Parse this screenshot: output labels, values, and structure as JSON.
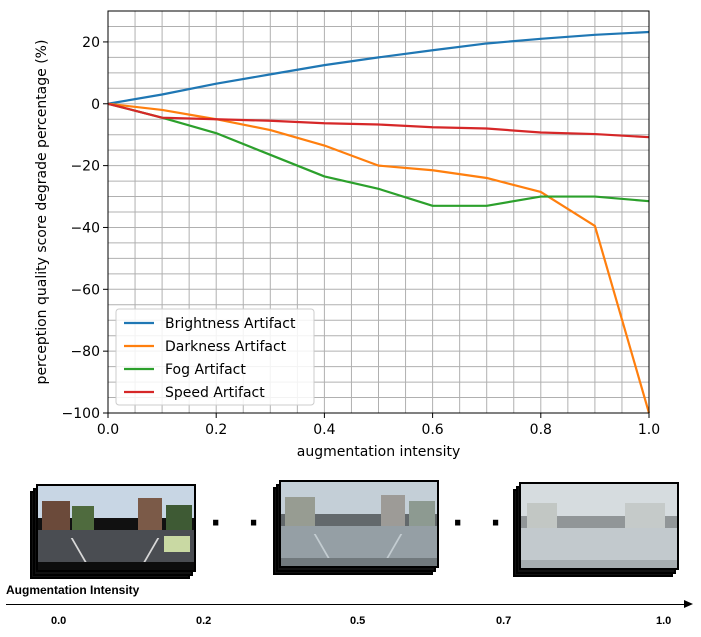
{
  "chart_data": {
    "type": "line",
    "xlabel": "augmentation intensity",
    "ylabel": "perception quality score degrade percentage (%)",
    "xlim": [
      0.0,
      1.0
    ],
    "ylim": [
      -100,
      30
    ],
    "x_ticks": [
      "0.0",
      "0.2",
      "0.4",
      "0.6",
      "0.8",
      "1.0"
    ],
    "x_tick_values": [
      0.0,
      0.2,
      0.4,
      0.6,
      0.8,
      1.0
    ],
    "y_ticks": [
      "20",
      "0",
      "−20",
      "−40",
      "−60",
      "−80",
      "−100"
    ],
    "y_tick_values": [
      20,
      0,
      -20,
      -40,
      -60,
      -80,
      -100
    ],
    "grid": true,
    "legend_position": "lower-left",
    "x": [
      0.0,
      0.1,
      0.2,
      0.3,
      0.4,
      0.5,
      0.6,
      0.7,
      0.8,
      0.9,
      1.0
    ],
    "series": [
      {
        "name": "Brightness Artifact",
        "color": "#1f77b4",
        "values": [
          0,
          3,
          6.5,
          9.5,
          12.5,
          15,
          17.3,
          19.5,
          21,
          22.3,
          23.2
        ]
      },
      {
        "name": "Darkness Artifact",
        "color": "#ff7f0e",
        "values": [
          0,
          -2,
          -5,
          -8.5,
          -13.5,
          -20,
          -21.5,
          -24,
          -28.5,
          -39.5,
          -100
        ]
      },
      {
        "name": "Fog Artifact",
        "color": "#2ca02c",
        "values": [
          0,
          -4.5,
          -9.5,
          -16.5,
          -23.5,
          -27.5,
          -33,
          -33,
          -30,
          -30,
          -31.5
        ]
      },
      {
        "name": "Speed Artifact",
        "color": "#d62728",
        "values": [
          0,
          -4.5,
          -5,
          -5.5,
          -6.3,
          -6.7,
          -7.6,
          -8,
          -9.3,
          -9.8,
          -10.8
        ]
      }
    ]
  },
  "strip": {
    "axis_title": "Augmentation Intensity",
    "intensity_labels": [
      "0.0",
      "0.2",
      "0.5",
      "0.7",
      "1.0"
    ],
    "ellipsis": "· · ·"
  }
}
